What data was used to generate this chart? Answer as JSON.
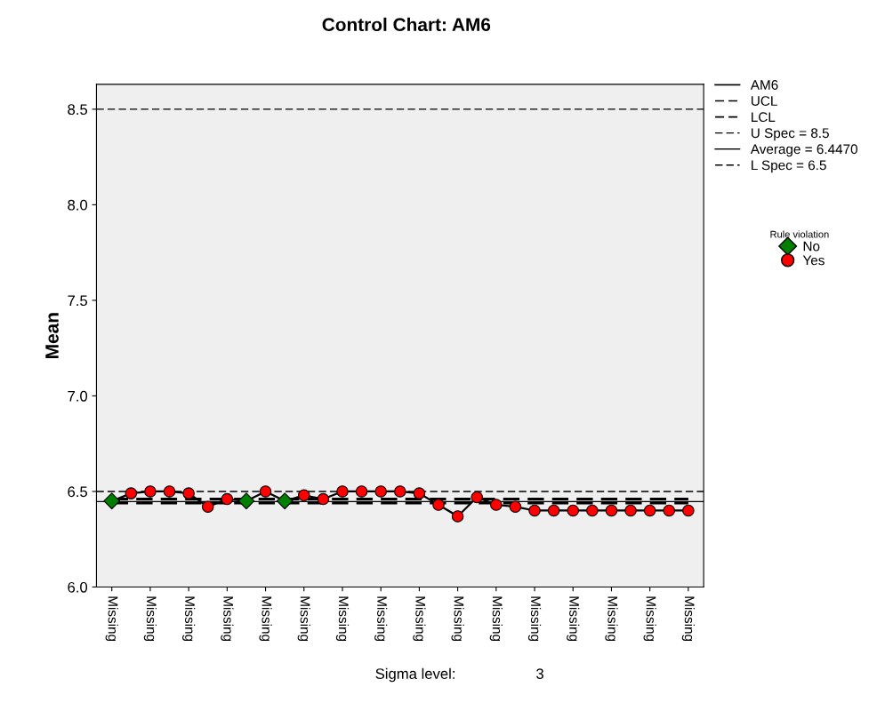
{
  "chart_data": {
    "type": "line",
    "title": "Control Chart: AM6",
    "ylabel": "Mean",
    "legend_title": "Rule violation",
    "categories": [
      "Missing",
      null,
      "Missing",
      null,
      "Missing",
      null,
      "Missing",
      null,
      "Missing",
      null,
      "Missing",
      null,
      "Missing",
      null,
      "Missing",
      null,
      "Missing",
      null,
      "Missing",
      null,
      "Missing",
      null,
      "Missing",
      null,
      "Missing",
      null,
      "Missing",
      null,
      "Missing",
      null,
      "Missing"
    ],
    "series": [
      {
        "name": "AM6",
        "color": "#000000",
        "marker": "none",
        "line_style": "solid",
        "values": [
          6.45,
          6.49,
          6.5,
          6.5,
          6.49,
          6.42,
          6.46,
          6.45,
          6.5,
          6.45,
          6.48,
          6.46,
          6.5,
          6.5,
          6.5,
          6.5,
          6.49,
          6.43,
          6.37,
          6.47,
          6.43,
          6.42,
          6.4,
          6.4,
          6.4,
          6.4,
          6.4,
          6.4,
          6.4,
          6.4,
          6.4
        ]
      },
      {
        "name": "UCL",
        "color": "#000000",
        "marker": "none",
        "line_style": "dashed",
        "values": [
          6.46,
          6.46,
          6.46,
          6.46,
          6.46,
          6.46,
          6.46,
          6.46,
          6.46,
          6.46,
          6.46,
          6.46,
          6.46,
          6.46,
          6.46,
          6.46,
          6.46,
          6.46,
          6.46,
          6.46,
          6.46,
          6.46,
          6.46,
          6.46,
          6.46,
          6.46,
          6.46,
          6.46,
          6.46,
          6.46,
          6.46
        ]
      },
      {
        "name": "LCL",
        "color": "#000000",
        "marker": "none",
        "line_style": "dashed",
        "values": [
          6.44,
          6.44,
          6.44,
          6.44,
          6.44,
          6.44,
          6.44,
          6.44,
          6.44,
          6.44,
          6.44,
          6.44,
          6.44,
          6.44,
          6.44,
          6.44,
          6.44,
          6.44,
          6.44,
          6.44,
          6.44,
          6.44,
          6.44,
          6.44,
          6.44,
          6.44,
          6.44,
          6.44,
          6.44,
          6.44,
          6.44
        ]
      },
      {
        "name": "No",
        "type": "scatter",
        "color": "#007f00",
        "marker": "diamond",
        "values": [
          6.45,
          null,
          null,
          null,
          null,
          null,
          null,
          6.45,
          null,
          6.45,
          null,
          null,
          null,
          null,
          null,
          null,
          null,
          null,
          null,
          null,
          null,
          null,
          null,
          null,
          null,
          null,
          null,
          null,
          null,
          null,
          null
        ]
      },
      {
        "name": "Yes",
        "type": "scatter",
        "color": "#ff0000",
        "marker": "circle",
        "values": [
          null,
          6.49,
          6.5,
          6.5,
          6.49,
          6.42,
          6.46,
          null,
          6.5,
          null,
          6.48,
          6.46,
          6.5,
          6.5,
          6.5,
          6.5,
          6.49,
          6.43,
          6.37,
          6.47,
          6.43,
          6.42,
          6.4,
          6.4,
          6.4,
          6.4,
          6.4,
          6.4,
          6.4,
          6.4,
          6.4
        ]
      }
    ],
    "ref_lines": [
      {
        "axis": "y",
        "value": 8.5,
        "label": "U Spec = 8.5",
        "color": "#000000",
        "line_style": "dashed"
      },
      {
        "axis": "y",
        "value": 6.447,
        "label": "Average = 6.4470",
        "color": "#000000",
        "line_style": "solid"
      },
      {
        "axis": "y",
        "value": 6.5,
        "label": "L Spec = 6.5",
        "color": "#000000",
        "line_style": "dashed"
      }
    ],
    "ylim": [
      6.0,
      8.63
    ],
    "yticks": [
      {
        "value": 6.0,
        "label": "6.0"
      },
      {
        "value": 6.5,
        "label": "6.5"
      },
      {
        "value": 7.0,
        "label": "7.0"
      },
      {
        "value": 7.5,
        "label": "7.5"
      },
      {
        "value": 8.0,
        "label": "8.0"
      },
      {
        "value": 8.5,
        "label": "8.5"
      }
    ],
    "grid": false,
    "legend": "right",
    "annotations": [
      "Sigma level:",
      "3"
    ]
  }
}
